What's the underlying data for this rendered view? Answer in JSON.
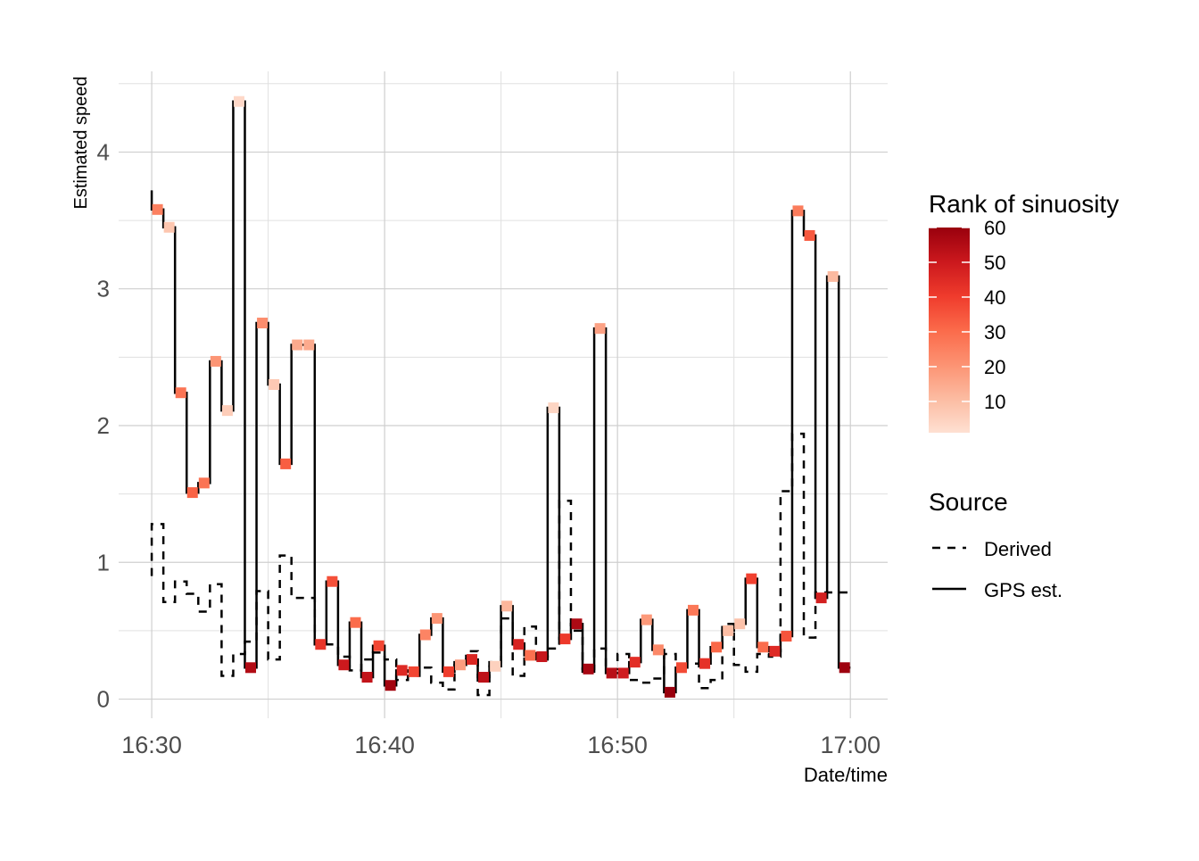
{
  "chart_data": {
    "type": "line",
    "title": "",
    "xlabel": "Date/time",
    "ylabel": "Estimated speed",
    "x_unit": "minutes after 16:30",
    "xlim": [
      -1.42,
      31.6
    ],
    "ylim": [
      -0.14,
      4.59
    ],
    "x_ticks": [
      {
        "value": 0,
        "label": "16:30"
      },
      {
        "value": 10,
        "label": "16:40"
      },
      {
        "value": 20,
        "label": "16:50"
      },
      {
        "value": 30,
        "label": "17:00"
      }
    ],
    "y_ticks": [
      {
        "value": 0,
        "label": "0"
      },
      {
        "value": 1,
        "label": "1"
      },
      {
        "value": 2,
        "label": "2"
      },
      {
        "value": 3,
        "label": "3"
      },
      {
        "value": 4,
        "label": "4"
      }
    ],
    "grid": true,
    "minutes": [
      0.25,
      0.75,
      1.25,
      1.75,
      2.25,
      2.75,
      3.25,
      3.75,
      4.25,
      4.75,
      5.25,
      5.75,
      6.25,
      6.75,
      7.25,
      7.75,
      8.25,
      8.75,
      9.25,
      9.75,
      10.25,
      10.75,
      11.25,
      11.75,
      12.25,
      12.75,
      13.25,
      13.75,
      14.25,
      14.75,
      15.25,
      15.75,
      16.25,
      16.75,
      17.25,
      17.75,
      18.25,
      18.75,
      19.25,
      19.75,
      20.25,
      20.75,
      21.25,
      21.75,
      22.25,
      22.75,
      23.25,
      23.75,
      24.25,
      24.75,
      25.25,
      25.75,
      26.25,
      26.75,
      27.25,
      27.75,
      28.25,
      28.75,
      29.25,
      29.75
    ],
    "series": [
      {
        "name": "GPS est.",
        "linetype": "solid",
        "start_value": 3.72,
        "values": [
          3.58,
          3.45,
          2.24,
          1.51,
          1.58,
          2.47,
          2.11,
          4.37,
          0.23,
          2.75,
          2.3,
          1.72,
          2.59,
          2.59,
          0.4,
          0.86,
          0.25,
          0.56,
          0.16,
          0.39,
          0.1,
          0.21,
          0.2,
          0.47,
          0.59,
          0.2,
          0.25,
          0.29,
          0.16,
          0.24,
          0.68,
          0.4,
          0.32,
          0.31,
          2.13,
          0.44,
          0.55,
          0.22,
          2.71,
          0.19,
          0.19,
          0.27,
          0.58,
          0.36,
          0.05,
          0.23,
          0.65,
          0.26,
          0.38,
          0.5,
          0.55,
          0.88,
          0.38,
          0.35,
          0.46,
          3.57,
          3.39,
          0.74,
          3.09,
          0.23
        ],
        "rank_of_sinuosity": [
          25,
          8,
          28,
          32,
          28,
          20,
          6,
          3,
          55,
          22,
          7,
          33,
          15,
          15,
          42,
          36,
          50,
          30,
          52,
          38,
          58,
          45,
          38,
          24,
          20,
          40,
          18,
          46,
          53,
          5,
          12,
          47,
          29,
          51,
          4,
          41,
          56,
          57,
          17,
          54,
          49,
          44,
          19,
          23,
          60,
          37,
          27,
          43,
          31,
          10,
          9,
          39,
          30,
          45,
          35,
          26,
          34,
          48,
          11,
          59
        ]
      },
      {
        "name": "Derived",
        "linetype": "dashed",
        "start_value": 0.9,
        "values": [
          1.28,
          0.71,
          0.86,
          0.77,
          0.64,
          0.84,
          0.17,
          0.33,
          0.42,
          0.79,
          0.29,
          1.05,
          0.74,
          0.74,
          0.4,
          0.4,
          0.31,
          0.21,
          0.29,
          0.34,
          0.29,
          0.14,
          0.17,
          0.23,
          0.12,
          0.07,
          0.27,
          0.35,
          0.03,
          0.27,
          0.59,
          0.17,
          0.53,
          0.29,
          0.37,
          1.45,
          0.5,
          0.2,
          0.37,
          0.22,
          0.33,
          0.14,
          0.12,
          0.15,
          0.33,
          0.26,
          0.26,
          0.08,
          0.14,
          0.55,
          0.25,
          0.2,
          0.33,
          0.31,
          1.52,
          1.94,
          0.45,
          0.78,
          0.78,
          0.78
        ]
      }
    ],
    "color_legend": {
      "title": "Rank of sinuosity",
      "range": [
        1,
        60
      ],
      "ticks": [
        "10",
        "20",
        "30",
        "40",
        "50",
        "60"
      ],
      "colors": [
        "#fee0d2",
        "#fcbba1",
        "#fc9272",
        "#fb6a4a",
        "#ef3b2c",
        "#cb181d",
        "#99000d"
      ]
    },
    "linetype_legend": {
      "title": "Source",
      "entries": [
        "Derived",
        "GPS est."
      ]
    }
  }
}
